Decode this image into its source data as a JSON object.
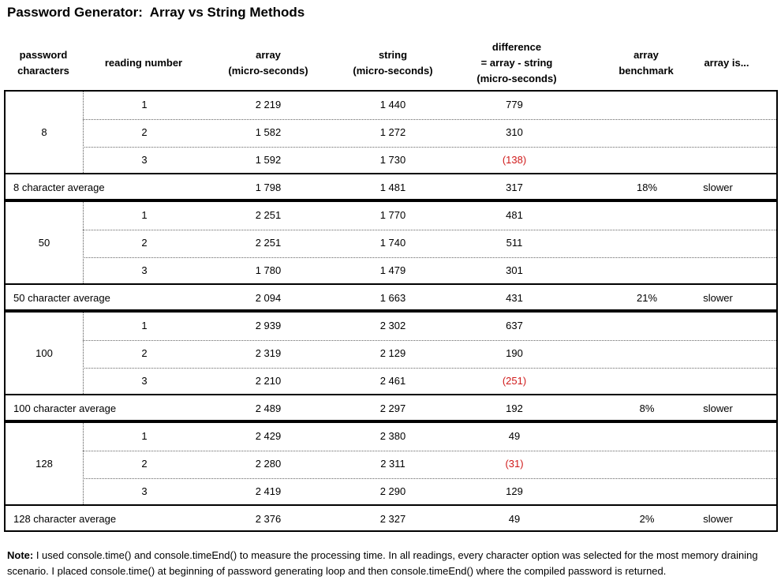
{
  "title": "Password Generator:  Array vs String Methods",
  "headers": {
    "password_characters": [
      "password",
      "characters"
    ],
    "reading_number": "reading number",
    "array": [
      "array",
      "(micro-seconds)"
    ],
    "string": [
      "string",
      "(micro-seconds)"
    ],
    "difference": [
      "difference",
      "= array - string",
      "(micro-seconds)"
    ],
    "array_benchmark": [
      "array",
      "benchmark"
    ],
    "array_is": "array is..."
  },
  "groups": [
    {
      "characters": "8",
      "rows": [
        {
          "reading": "1",
          "array": "2 219",
          "string": "1 440",
          "difference": "779",
          "negative": false
        },
        {
          "reading": "2",
          "array": "1 582",
          "string": "1 272",
          "difference": "310",
          "negative": false
        },
        {
          "reading": "3",
          "array": "1 592",
          "string": "1 730",
          "difference": "(138)",
          "negative": true
        }
      ],
      "average": {
        "label": "8 character average",
        "array": "1 798",
        "string": "1 481",
        "difference": "317",
        "benchmark": "18%",
        "is": "slower"
      }
    },
    {
      "characters": "50",
      "rows": [
        {
          "reading": "1",
          "array": "2 251",
          "string": "1 770",
          "difference": "481",
          "negative": false
        },
        {
          "reading": "2",
          "array": "2 251",
          "string": "1 740",
          "difference": "511",
          "negative": false
        },
        {
          "reading": "3",
          "array": "1 780",
          "string": "1 479",
          "difference": "301",
          "negative": false
        }
      ],
      "average": {
        "label": "50 character average",
        "array": "2 094",
        "string": "1 663",
        "difference": "431",
        "benchmark": "21%",
        "is": "slower"
      }
    },
    {
      "characters": "100",
      "rows": [
        {
          "reading": "1",
          "array": "2 939",
          "string": "2 302",
          "difference": "637",
          "negative": false
        },
        {
          "reading": "2",
          "array": "2 319",
          "string": "2 129",
          "difference": "190",
          "negative": false
        },
        {
          "reading": "3",
          "array": "2 210",
          "string": "2 461",
          "difference": "(251)",
          "negative": true
        }
      ],
      "average": {
        "label": "100 character average",
        "array": "2 489",
        "string": "2 297",
        "difference": "192",
        "benchmark": "8%",
        "is": "slower"
      }
    },
    {
      "characters": "128",
      "rows": [
        {
          "reading": "1",
          "array": "2 429",
          "string": "2 380",
          "difference": "49",
          "negative": false
        },
        {
          "reading": "2",
          "array": "2 280",
          "string": "2 311",
          "difference": "(31)",
          "negative": true
        },
        {
          "reading": "3",
          "array": "2 419",
          "string": "2 290",
          "difference": "129",
          "negative": false
        }
      ],
      "average": {
        "label": "128 character average",
        "array": "2 376",
        "string": "2 327",
        "difference": "49",
        "benchmark": "2%",
        "is": "slower"
      }
    }
  ],
  "note": {
    "label": "Note:",
    "text": " I used console.time() and console.timeEnd() to measure the processing time.  In all readings, every character option was selected for the most memory draining scenario.  I placed console.time() at beginning of password generating loop and then console.timeEnd() where the compiled password is returned."
  },
  "colors": {
    "negative": "#d01a1a",
    "border": "#000000"
  }
}
